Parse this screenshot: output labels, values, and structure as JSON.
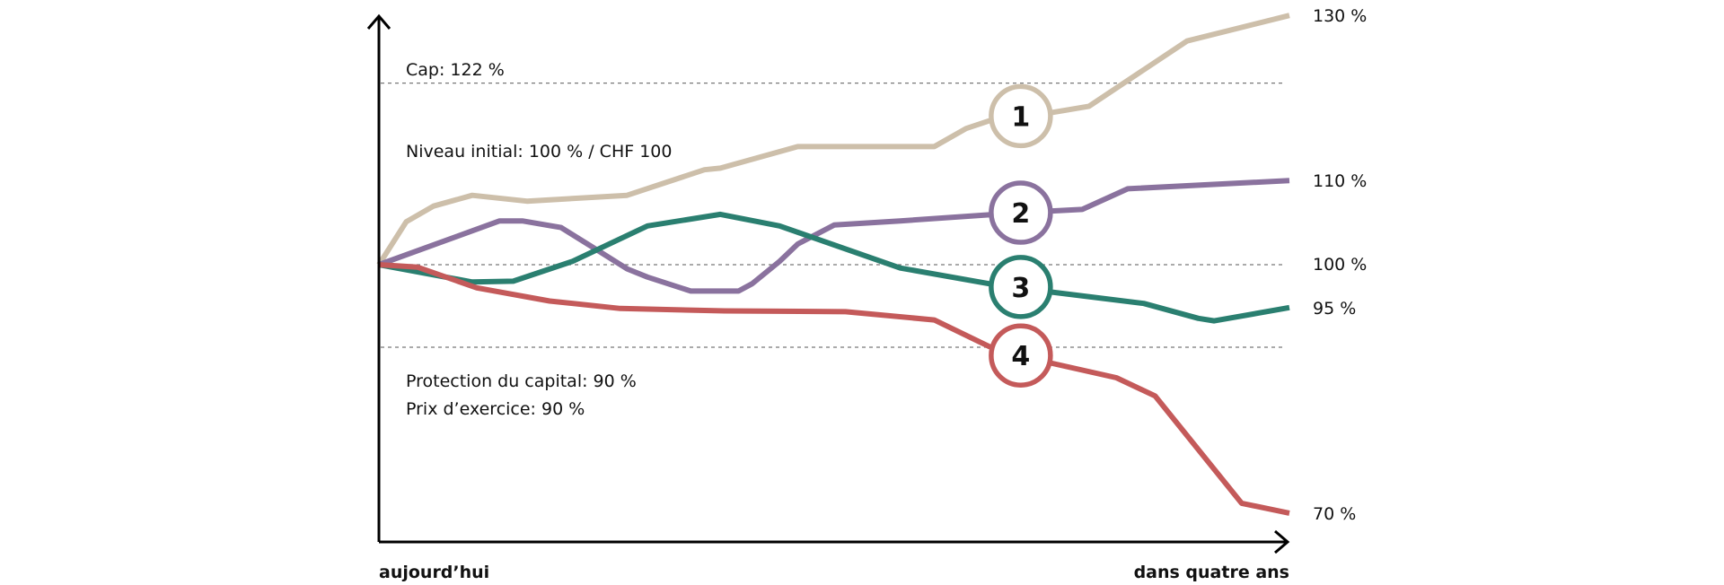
{
  "chart_data": {
    "type": "line",
    "title": "",
    "x_start_label": "aujourd’hui",
    "x_end_label": "dans quatre ans",
    "x_unit": "years",
    "xlim": [
      0,
      4
    ],
    "ylim": [
      67,
      133
    ],
    "grid": false,
    "reference_lines": [
      {
        "value": 122,
        "label": "Cap: 122 %"
      },
      {
        "value": 100,
        "label": "Niveau initial: 100 % / CHF 100",
        "end_label": "100 %"
      },
      {
        "value": 90,
        "label": "Protection du capital: 90 %",
        "label2": "Prix d’exercice: 90 %"
      }
    ],
    "marker_x": 2.82,
    "series": [
      {
        "marker": "1",
        "color": "#CDBFAA",
        "end_label": "130 %",
        "x": [
          0,
          0.12,
          0.24,
          0.41,
          0.65,
          1.09,
          1.43,
          1.5,
          1.84,
          2.44,
          2.58,
          2.71,
          2.82,
          2.95,
          3.12,
          3.55,
          4
        ],
        "y": [
          100,
          105.2,
          107.1,
          108.4,
          107.7,
          108.4,
          111.5,
          111.7,
          114.3,
          114.3,
          116.5,
          117.7,
          118.0,
          118.4,
          119.2,
          127.1,
          130.2
        ]
      },
      {
        "marker": "2",
        "color": "#8A729E",
        "end_label": "110 %",
        "x": [
          0,
          0.53,
          0.63,
          0.8,
          0.94,
          1.09,
          1.18,
          1.37,
          1.58,
          1.64,
          1.76,
          1.84,
          2.0,
          2.29,
          2.71,
          2.82,
          3.09,
          3.29,
          4
        ],
        "y": [
          100,
          105.3,
          105.3,
          104.5,
          102.1,
          99.5,
          98.5,
          96.8,
          96.8,
          97.7,
          100.4,
          102.5,
          104.8,
          105.3,
          106.1,
          106.3,
          106.7,
          109.2,
          110.2
        ]
      },
      {
        "marker": "3",
        "color": "#2A7F70",
        "end_label": "95 %",
        "x": [
          0,
          0.41,
          0.59,
          0.85,
          1.18,
          1.5,
          1.76,
          2.29,
          2.68,
          2.82,
          2.95,
          3.36,
          3.6,
          3.67,
          4
        ],
        "y": [
          100,
          97.9,
          98.0,
          100.4,
          104.7,
          106.1,
          104.7,
          99.6,
          97.7,
          97.3,
          96.7,
          95.3,
          93.5,
          93.2,
          94.8
        ]
      },
      {
        "marker": "4",
        "color": "#C45A5A",
        "end_label": "70 %",
        "x": [
          0,
          0.17,
          0.43,
          0.75,
          1.06,
          1.52,
          2.05,
          2.44,
          2.68,
          2.82,
          2.95,
          3.24,
          3.41,
          3.79,
          4
        ],
        "y": [
          100,
          99.7,
          97.2,
          95.6,
          94.7,
          94.4,
          94.3,
          93.3,
          90.1,
          89.0,
          88.1,
          86.3,
          84.1,
          71.1,
          69.9
        ]
      }
    ]
  }
}
